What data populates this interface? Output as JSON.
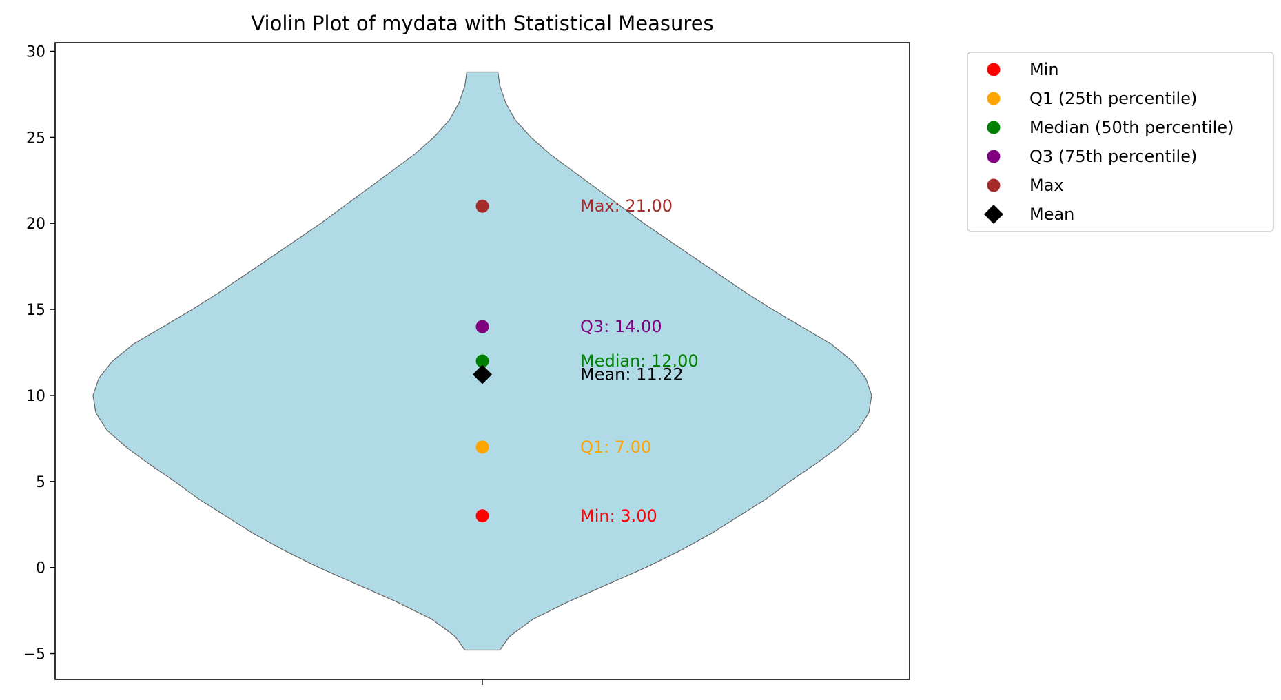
{
  "chart_data": {
    "type": "violin",
    "title": "Violin Plot of mydata with Statistical Measures",
    "xlabel": "",
    "ylabel": "",
    "ylim": [
      -6.5,
      30.5
    ],
    "yticks": [
      -5,
      0,
      5,
      10,
      15,
      20,
      25,
      30
    ],
    "ytick_labels": [
      "−5",
      "0",
      "5",
      "10",
      "15",
      "20",
      "25",
      "30"
    ],
    "violin": {
      "color": "#add8e6",
      "edge_color": "#666666",
      "y_min": -4.8,
      "y_max": 28.8,
      "density_profile": [
        {
          "y": -4.8,
          "w": 0.045
        },
        {
          "y": -4.0,
          "w": 0.07
        },
        {
          "y": -3.0,
          "w": 0.13
        },
        {
          "y": -2.0,
          "w": 0.22
        },
        {
          "y": -1.0,
          "w": 0.32
        },
        {
          "y": 0.0,
          "w": 0.42
        },
        {
          "y": 1.0,
          "w": 0.51
        },
        {
          "y": 2.0,
          "w": 0.59
        },
        {
          "y": 3.0,
          "w": 0.66
        },
        {
          "y": 4.0,
          "w": 0.73
        },
        {
          "y": 5.0,
          "w": 0.79
        },
        {
          "y": 6.0,
          "w": 0.855
        },
        {
          "y": 7.0,
          "w": 0.915
        },
        {
          "y": 8.0,
          "w": 0.965
        },
        {
          "y": 9.0,
          "w": 0.993
        },
        {
          "y": 10.0,
          "w": 1.0
        },
        {
          "y": 11.0,
          "w": 0.985
        },
        {
          "y": 12.0,
          "w": 0.95
        },
        {
          "y": 13.0,
          "w": 0.895
        },
        {
          "y": 14.0,
          "w": 0.82
        },
        {
          "y": 15.0,
          "w": 0.745
        },
        {
          "y": 16.0,
          "w": 0.675
        },
        {
          "y": 17.0,
          "w": 0.61
        },
        {
          "y": 18.0,
          "w": 0.545
        },
        {
          "y": 19.0,
          "w": 0.48
        },
        {
          "y": 20.0,
          "w": 0.415
        },
        {
          "y": 21.0,
          "w": 0.355
        },
        {
          "y": 22.0,
          "w": 0.295
        },
        {
          "y": 23.0,
          "w": 0.235
        },
        {
          "y": 24.0,
          "w": 0.175
        },
        {
          "y": 25.0,
          "w": 0.125
        },
        {
          "y": 26.0,
          "w": 0.085
        },
        {
          "y": 27.0,
          "w": 0.06
        },
        {
          "y": 28.0,
          "w": 0.045
        },
        {
          "y": 28.8,
          "w": 0.04
        }
      ]
    },
    "stats": [
      {
        "name": "Min",
        "value": 3.0,
        "color": "#ff0000",
        "marker": "circle",
        "annotation": "Min: 3.00"
      },
      {
        "name": "Q1 (25th percentile)",
        "value": 7.0,
        "color": "#ffa500",
        "marker": "circle",
        "annotation": "Q1: 7.00"
      },
      {
        "name": "Median (50th percentile)",
        "value": 12.0,
        "color": "#008000",
        "marker": "circle",
        "annotation": "Median: 12.00"
      },
      {
        "name": "Q3 (75th percentile)",
        "value": 14.0,
        "color": "#800080",
        "marker": "circle",
        "annotation": "Q3: 14.00"
      },
      {
        "name": "Max",
        "value": 21.0,
        "color": "#a52a2a",
        "marker": "circle",
        "annotation": "Max: 21.00"
      },
      {
        "name": "Mean",
        "value": 11.22,
        "color": "#000000",
        "marker": "diamond",
        "annotation": "Mean: 11.22"
      }
    ],
    "legend": {
      "placement": "outside upper right",
      "entries": [
        "Min",
        "Q1 (25th percentile)",
        "Median (50th percentile)",
        "Q3 (75th percentile)",
        "Max",
        "Mean"
      ]
    },
    "grid": false
  }
}
